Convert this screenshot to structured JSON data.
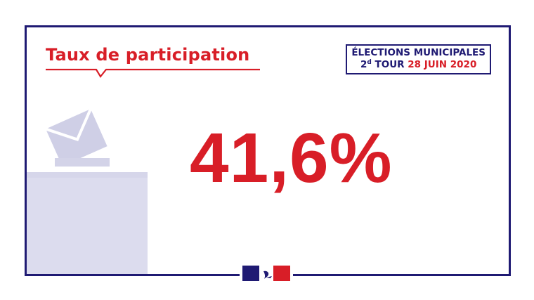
{
  "title": "Taux de participation",
  "election": {
    "line1": "ÉLECTIONS MUNICIPALES",
    "round_number": "2",
    "round_suffix": "d",
    "round_word": "TOUR",
    "date": "28 JUIN 2020"
  },
  "value": "41,6%",
  "colors": {
    "navy": "#1f1a73",
    "red": "#d81e27",
    "ballot": "#dcdcee",
    "ballot_dark": "#c9c9e2"
  },
  "icons": {
    "ballot": "ballot-box-icon",
    "logo": "marianne-logo-icon"
  }
}
